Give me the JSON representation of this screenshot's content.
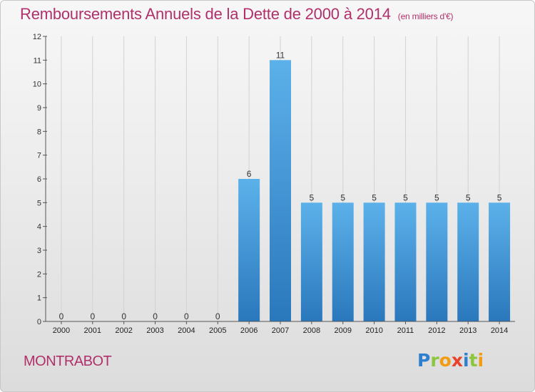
{
  "page": {
    "title": "Remboursements Annuels de la Dette de 2000 à 2014",
    "unit": "(en milliers d'€)",
    "commune": "MONTRABOT",
    "logo": {
      "letters": [
        "P",
        "r",
        "o",
        "x",
        "i",
        "t",
        "i"
      ]
    }
  },
  "colors": {
    "title": "#b0306a",
    "bar_light": "#5cb1ea",
    "bar_dark": "#2a78bc",
    "grid": "#d2d2d2"
  },
  "chart_data": {
    "type": "bar",
    "title": "Remboursements Annuels de la Dette de 2000 à 2014",
    "subtitle": "(en milliers d'€)",
    "xlabel": "",
    "ylabel": "",
    "categories": [
      "2000",
      "2001",
      "2002",
      "2003",
      "2004",
      "2005",
      "2006",
      "2007",
      "2008",
      "2009",
      "2010",
      "2011",
      "2012",
      "2013",
      "2014"
    ],
    "values": [
      0,
      0,
      0,
      0,
      0,
      0,
      6,
      11,
      5,
      5,
      5,
      5,
      5,
      5,
      5
    ],
    "data_labels": [
      "0",
      "0",
      "0",
      "0",
      "0",
      "0",
      "6",
      "11",
      "5",
      "5",
      "5",
      "5",
      "5",
      "5",
      "5"
    ],
    "yticks": [
      0,
      1,
      2,
      3,
      4,
      5,
      6,
      7,
      8,
      9,
      10,
      11,
      12
    ],
    "ylim": [
      0,
      12
    ],
    "grid": true,
    "legend": "none"
  }
}
